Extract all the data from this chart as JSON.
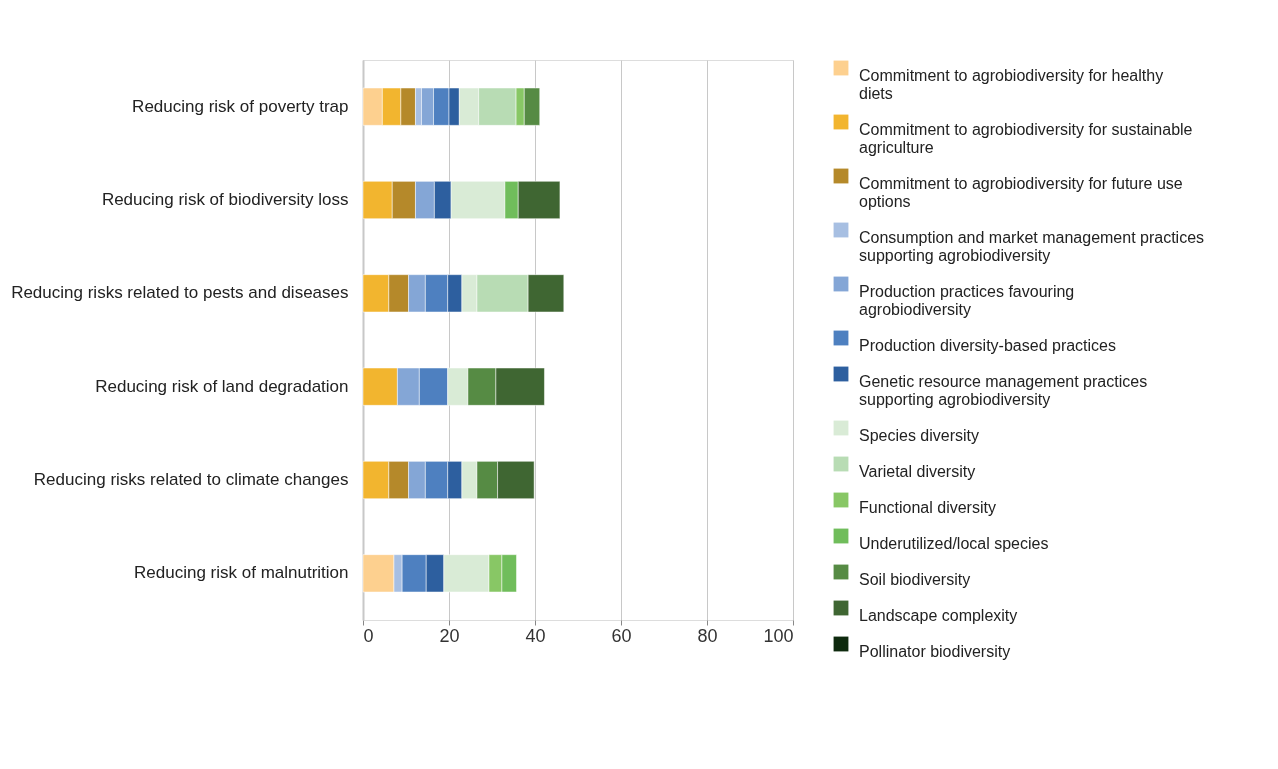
{
  "chart_data": {
    "type": "bar",
    "orientation": "horizontal",
    "stacked": true,
    "categories": [
      "Reducing risk of poverty trap",
      "Reducing risk of biodiversity loss",
      "Reducing risks related to pests and diseases",
      "Reducing risk of land degradation",
      "Reducing risks related to climate changes",
      "Reducing risk of malnutrition"
    ],
    "series": [
      {
        "name": "Commitment to agrobiodiversity for healthy diets",
        "color": "#fdd08f",
        "values": [
          4.5,
          null,
          null,
          null,
          null,
          7.2
        ]
      },
      {
        "name": "Commitment to agrobiodiversity for sustainable agriculture",
        "color": "#f2b52f",
        "values": [
          4.3,
          6.8,
          6.0,
          8.0,
          6.0,
          null
        ]
      },
      {
        "name": "Commitment to agrobiodiversity for future use options",
        "color": "#b5892a",
        "values": [
          3.4,
          5.4,
          4.6,
          null,
          4.6,
          null
        ]
      },
      {
        "name": "Consumption and market management practices supporting agrobiodiversity",
        "color": "#a7bfe2",
        "values": [
          1.4,
          null,
          null,
          null,
          null,
          1.9
        ]
      },
      {
        "name": "Production practices favouring agrobiodiversity",
        "color": "#84a6d6",
        "values": [
          2.8,
          4.4,
          3.9,
          5.1,
          3.9,
          null
        ]
      },
      {
        "name": "Production diversity-based practices",
        "color": "#4e80c0",
        "values": [
          3.6,
          null,
          5.2,
          6.6,
          5.2,
          5.6
        ]
      },
      {
        "name": "Genetic resource management practices supporting agrobiodiversity",
        "color": "#2d5f9f",
        "values": [
          2.4,
          3.9,
          3.3,
          null,
          3.3,
          4.1
        ]
      },
      {
        "name": "Species diversity",
        "color": "#d9ebd6",
        "values": [
          4.5,
          12.5,
          3.5,
          4.7,
          3.5,
          10.5
        ]
      },
      {
        "name": "Varietal diversity",
        "color": "#b8dcb4",
        "values": [
          8.7,
          null,
          11.9,
          null,
          null,
          null
        ]
      },
      {
        "name": "Functional diversity",
        "color": "#88c765",
        "values": [
          1.9,
          null,
          null,
          null,
          null,
          3.0
        ]
      },
      {
        "name": "Underutilized/local species",
        "color": "#70bd5b",
        "values": [
          null,
          3.1,
          null,
          null,
          null,
          3.4
        ]
      },
      {
        "name": "Soil biodiversity",
        "color": "#568b44",
        "values": [
          3.6,
          null,
          null,
          6.5,
          4.8,
          null
        ]
      },
      {
        "name": "Landscape complexity",
        "color": "#3f6632",
        "values": [
          null,
          9.7,
          8.3,
          11.3,
          8.5,
          null
        ]
      },
      {
        "name": "Pollinator biodiversity",
        "color": "#0e2a0e",
        "values": [
          null,
          null,
          null,
          null,
          null,
          null
        ]
      }
    ],
    "xlim": [
      0,
      100
    ],
    "xticks": [
      0,
      20,
      40,
      60,
      80,
      100
    ],
    "grid": "x",
    "legend": "right"
  }
}
